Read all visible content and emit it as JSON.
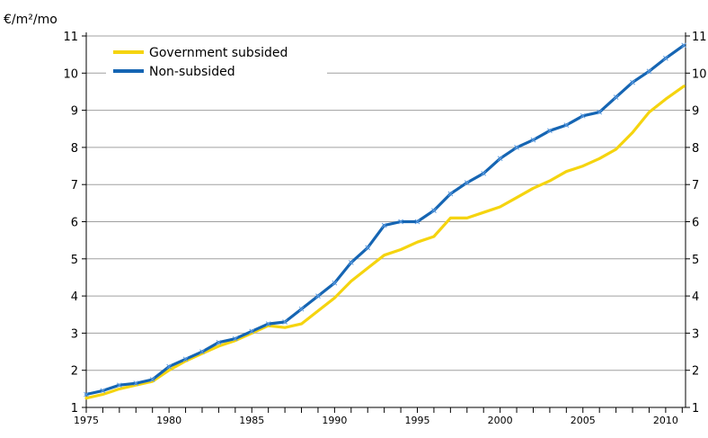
{
  "chart_data": {
    "type": "line",
    "ylabel": "€/m²/mo",
    "ylim": [
      1,
      11
    ],
    "yticks": [
      "1",
      "2",
      "3",
      "4",
      "5",
      "6",
      "7",
      "8",
      "9",
      "10",
      "11"
    ],
    "xlim": [
      1975,
      2011.2
    ],
    "xticks": [
      "1975",
      "1980",
      "1985",
      "1990",
      "1995",
      "2000",
      "2005",
      "2010"
    ],
    "grid": true,
    "legend_position": "top-left",
    "series": [
      {
        "name": "Government subsided",
        "color": "#f5d40f",
        "points": [
          [
            1975,
            1.25
          ],
          [
            1976,
            1.35
          ],
          [
            1977,
            1.5
          ],
          [
            1978,
            1.6
          ],
          [
            1979,
            1.7
          ],
          [
            1980,
            2.0
          ],
          [
            1981,
            2.25
          ],
          [
            1982,
            2.45
          ],
          [
            1983,
            2.65
          ],
          [
            1984,
            2.8
          ],
          [
            1985,
            3.0
          ],
          [
            1986,
            3.2
          ],
          [
            1987,
            3.15
          ],
          [
            1988,
            3.25
          ],
          [
            1989,
            3.6
          ],
          [
            1990,
            3.95
          ],
          [
            1991,
            4.4
          ],
          [
            1992,
            4.75
          ],
          [
            1993,
            5.1
          ],
          [
            1994,
            5.25
          ],
          [
            1995,
            5.45
          ],
          [
            1996,
            5.6
          ],
          [
            1997,
            6.1
          ],
          [
            1998,
            6.1
          ],
          [
            1999,
            6.25
          ],
          [
            2000,
            6.4
          ],
          [
            2001,
            6.65
          ],
          [
            2002,
            6.9
          ],
          [
            2003,
            7.1
          ],
          [
            2004,
            7.35
          ],
          [
            2005,
            7.5
          ],
          [
            2006,
            7.7
          ],
          [
            2007,
            7.95
          ],
          [
            2008,
            8.4
          ],
          [
            2009,
            8.95
          ],
          [
            2010,
            9.3
          ],
          [
            2011.1,
            9.65
          ]
        ]
      },
      {
        "name": "Non-subsided",
        "color": "#1565b3",
        "points": [
          [
            1975,
            1.35
          ],
          [
            1976,
            1.45
          ],
          [
            1977,
            1.6
          ],
          [
            1978,
            1.65
          ],
          [
            1979,
            1.75
          ],
          [
            1980,
            2.1
          ],
          [
            1981,
            2.3
          ],
          [
            1982,
            2.5
          ],
          [
            1983,
            2.75
          ],
          [
            1984,
            2.85
          ],
          [
            1985,
            3.05
          ],
          [
            1986,
            3.25
          ],
          [
            1987,
            3.3
          ],
          [
            1988,
            3.65
          ],
          [
            1989,
            4.0
          ],
          [
            1990,
            4.35
          ],
          [
            1991,
            4.9
          ],
          [
            1992,
            5.3
          ],
          [
            1993,
            5.9
          ],
          [
            1994,
            6.0
          ],
          [
            1995,
            6.0
          ],
          [
            1996,
            6.3
          ],
          [
            1997,
            6.75
          ],
          [
            1998,
            7.05
          ],
          [
            1999,
            7.3
          ],
          [
            2000,
            7.7
          ],
          [
            2001,
            8.0
          ],
          [
            2002,
            8.2
          ],
          [
            2003,
            8.45
          ],
          [
            2004,
            8.6
          ],
          [
            2005,
            8.85
          ],
          [
            2006,
            8.95
          ],
          [
            2007,
            9.35
          ],
          [
            2008,
            9.75
          ],
          [
            2009,
            10.05
          ],
          [
            2010,
            10.4
          ],
          [
            2011.1,
            10.75
          ]
        ]
      }
    ]
  }
}
